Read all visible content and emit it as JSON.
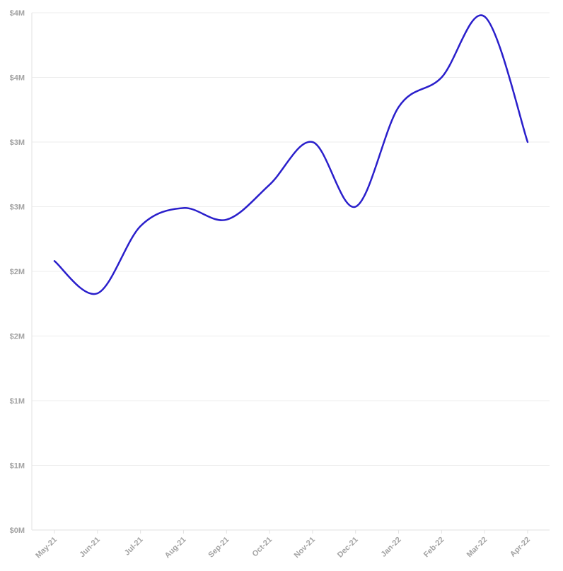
{
  "chart_data": {
    "type": "line",
    "title": "",
    "xlabel": "",
    "ylabel": "",
    "categories": [
      "May-21",
      "Jun-21",
      "Jul-21",
      "Aug-21",
      "Sep-21",
      "Oct-21",
      "Nov-21",
      "Dec-21",
      "Jan-22",
      "Feb-22",
      "Mar-22",
      "Apr-22"
    ],
    "series": [
      {
        "values": [
          2.08,
          1.83,
          2.35,
          2.49,
          2.4,
          2.67,
          3.0,
          2.5,
          3.27,
          3.5,
          3.97,
          3.0
        ]
      }
    ],
    "ylim": [
      0,
      4
    ],
    "y_ticks": [
      0,
      0.5,
      1,
      1.5,
      2,
      2.5,
      3,
      3.5,
      4
    ],
    "y_tick_labels": [
      "$0M",
      "$1M",
      "$1M",
      "$2M",
      "$2M",
      "$3M",
      "$3M",
      "$4M",
      "$4M"
    ],
    "grid": true,
    "legend": "none",
    "colors": {
      "line": "#2a1fcb",
      "grid": "#ececec",
      "tick_text": "#a3a3a3"
    }
  }
}
